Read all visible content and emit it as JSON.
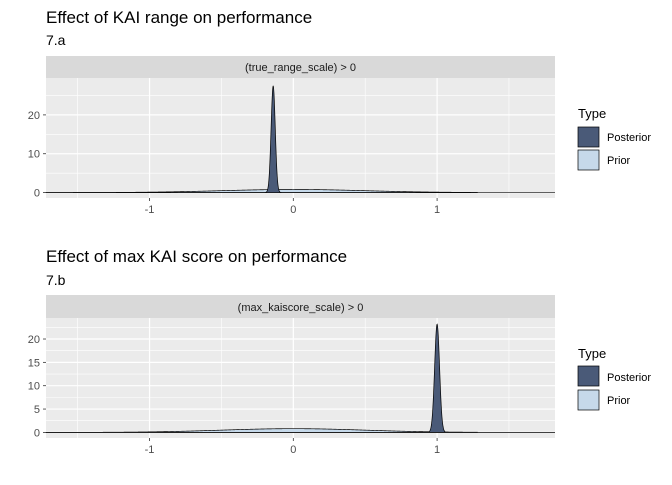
{
  "colors": {
    "posterior": "#4a5a78",
    "prior": "#c6d9ea",
    "panel_bg": "#ebebeb",
    "strip_bg": "#d9d9d9",
    "grid": "#ffffff"
  },
  "chart_data": [
    {
      "type": "area",
      "title": "Effect of KAI range on performance",
      "subtitle": "7.a",
      "strip_label": "(true_range_scale) > 0",
      "xlim": [
        -1.72,
        1.82
      ],
      "ylim": [
        -1.4,
        29.5
      ],
      "x_ticks": [
        -1,
        0,
        1
      ],
      "x_tick_labels": [
        "-1",
        "0",
        "1"
      ],
      "y_ticks": [
        0,
        10,
        20
      ],
      "y_tick_labels": [
        "0",
        "10",
        "20"
      ],
      "legend": {
        "title": "Type",
        "entries": [
          "Posterior",
          "Prior"
        ],
        "placement": "right"
      },
      "series": [
        {
          "name": "Prior",
          "type": "normal",
          "mean": 0,
          "sd": 0.5,
          "x_range": [
            -1.72,
            1.28
          ]
        },
        {
          "name": "Posterior",
          "type": "normal",
          "mean": -0.14,
          "sd": 0.0145,
          "x_range": [
            -1.72,
            1.82
          ]
        }
      ]
    },
    {
      "type": "area",
      "title": "Effect of max KAI score on performance",
      "subtitle": "7.b",
      "strip_label": "(max_kaiscore_scale) > 0",
      "xlim": [
        -1.72,
        1.82
      ],
      "ylim": [
        -1.2,
        24.5
      ],
      "x_ticks": [
        -1,
        0,
        1
      ],
      "x_tick_labels": [
        "-1",
        "0",
        "1"
      ],
      "y_ticks": [
        0,
        5,
        10,
        15,
        20
      ],
      "y_tick_labels": [
        "0",
        "5",
        "10",
        "15",
        "20"
      ],
      "legend": {
        "title": "Type",
        "entries": [
          "Posterior",
          "Prior"
        ],
        "placement": "right"
      },
      "series": [
        {
          "name": "Prior",
          "type": "normal",
          "mean": 0,
          "sd": 0.5,
          "x_range": [
            -1.72,
            1.28
          ]
        },
        {
          "name": "Posterior",
          "type": "normal",
          "mean": 1.0,
          "sd": 0.0172,
          "x_range": [
            -1.72,
            1.82
          ]
        }
      ]
    }
  ]
}
